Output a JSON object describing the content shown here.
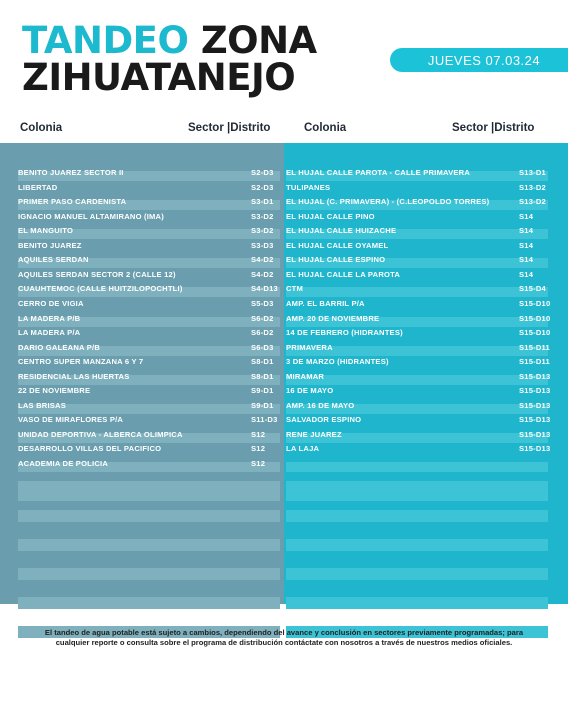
{
  "header": {
    "title_word1": "TANDEO",
    "title_word2": "ZONA",
    "title_line2": "ZIHUATANEJO",
    "date": "JUEVES 07.03.24"
  },
  "columns": {
    "left": {
      "colonia": "Colonia",
      "sector": "Sector |Distrito"
    },
    "right": {
      "colonia": "Colonia",
      "sector": "Sector |Distrito"
    }
  },
  "left_rows": [
    {
      "name": "BENITO JUAREZ SECTOR II",
      "sector": "S2-D3"
    },
    {
      "name": "LIBERTAD",
      "sector": "S2-D3"
    },
    {
      "name": "PRIMER PASO CARDENISTA",
      "sector": "S3-D1"
    },
    {
      "name": "IGNACIO MANUEL ALTAMIRANO (IMA)",
      "sector": "S3-D2"
    },
    {
      "name": "EL MANGUITO",
      "sector": "S3-D2"
    },
    {
      "name": "BENITO JUAREZ",
      "sector": "S3-D3"
    },
    {
      "name": "AQUILES SERDAN",
      "sector": "S4-D2"
    },
    {
      "name": "AQUILES SERDAN SECTOR 2 (CALLE 12)",
      "sector": "S4-D2"
    },
    {
      "name": "CUAUHTEMOC (CALLE HUITZILOPOCHTLI)",
      "sector": "S4-D13"
    },
    {
      "name": "CERRO DE VIGIA",
      "sector": "S5-D3"
    },
    {
      "name": "LA MADERA P/B",
      "sector": "S6-D2"
    },
    {
      "name": "LA MADERA P/A",
      "sector": "S6-D2"
    },
    {
      "name": " DARIO GALEANA P/B",
      "sector": "S6-D3"
    },
    {
      "name": " CENTRO SUPER MANZANA 6 Y 7",
      "sector": "S8-D1"
    },
    {
      "name": "RESIDENCIAL LAS HUERTAS",
      "sector": "S8-D1"
    },
    {
      "name": "22 DE NOVIEMBRE",
      "sector": "S9-D1"
    },
    {
      "name": "LAS BRISAS",
      "sector": "S9-D1"
    },
    {
      "name": "VASO DE MIRAFLORES P/A",
      "sector": "S11-D3"
    },
    {
      "name": "UNIDAD DEPORTIVA - ALBERCA OLIMPICA",
      "sector": "S12"
    },
    {
      "name": "DESARROLLO VILLAS DEL PACIFICO",
      "sector": "S12"
    },
    {
      "name": "ACADEMIA DE POLICIA",
      "sector": "S12"
    }
  ],
  "right_rows": [
    {
      "name": "EL HUJAL CALLE PAROTA  - CALLE PRIMAVERA",
      "sector": "S13-D1"
    },
    {
      "name": "TULIPANES",
      "sector": "S13-D2"
    },
    {
      "name": "EL HUJAL (C. PRIMAVERA) - (C.LEOPOLDO TORRES)",
      "sector": "S13-D2"
    },
    {
      "name": "EL HUJAL CALLE PINO",
      "sector": "S14"
    },
    {
      "name": "EL HUJAL CALLE HUIZACHE",
      "sector": "S14"
    },
    {
      "name": "EL HUJAL CALLE OYAMEL",
      "sector": "S14"
    },
    {
      "name": "EL HUJAL CALLE ESPINO",
      "sector": "S14"
    },
    {
      "name": "EL HUJAL CALLE LA PAROTA",
      "sector": "S14"
    },
    {
      "name": "CTM",
      "sector": "S15-D4"
    },
    {
      "name": "AMP. EL BARRIL P/A",
      "sector": "S15-D10"
    },
    {
      "name": "AMP. 20 DE NOVIEMBRE",
      "sector": "S15-D10"
    },
    {
      "name": "14 DE FEBRERO (HIDRANTES)",
      "sector": "S15-D10"
    },
    {
      "name": "PRIMAVERA",
      "sector": "S15-D11"
    },
    {
      "name": "3 DE MARZO (HIDRANTES)",
      "sector": "S15-D11"
    },
    {
      "name": "MIRAMAR",
      "sector": "S15-D13"
    },
    {
      "name": "16 DE MAYO",
      "sector": "S15-D13"
    },
    {
      "name": "AMP. 16 DE MAYO",
      "sector": "S15-D13"
    },
    {
      "name": "SALVADOR ESPINO",
      "sector": "S15-D13"
    },
    {
      "name": "RENE JUAREZ",
      "sector": "S15-D13"
    },
    {
      "name": "LA LAJA",
      "sector": "S15-D13"
    }
  ],
  "footer": {
    "text": "El tandeo de agua potable está sujeto a cambios, dependiendo del avance y conclusión en sectores previamente programadas; para cualquier reporte o consulta sobre el programa de distribución contáctate con nosotros a través de nuestros medios oficiales."
  },
  "colors": {
    "accent": "#1db9cf",
    "left_panel": "#6a9eae",
    "right_panel": "#1fb6cd"
  }
}
